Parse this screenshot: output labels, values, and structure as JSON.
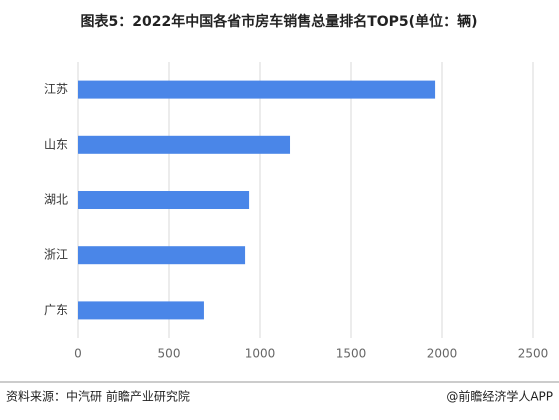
{
  "chart_data": {
    "type": "bar",
    "orientation": "horizontal",
    "title": "图表5：2022年中国各省市房车销售总量排名TOP5(单位：辆)",
    "categories": [
      "江苏",
      "山东",
      "湖北",
      "浙江",
      "广东"
    ],
    "values": [
      1962,
      1165,
      940,
      918,
      692
    ],
    "color": "#4a86e8",
    "xlim": [
      0,
      2500
    ],
    "xticks": [
      0,
      500,
      1000,
      1500,
      2000,
      2500
    ],
    "grid": true
  },
  "footer": {
    "source": "资料来源：中汽研 前瞻产业研究院",
    "credit": "@前瞻经济学人APP"
  }
}
